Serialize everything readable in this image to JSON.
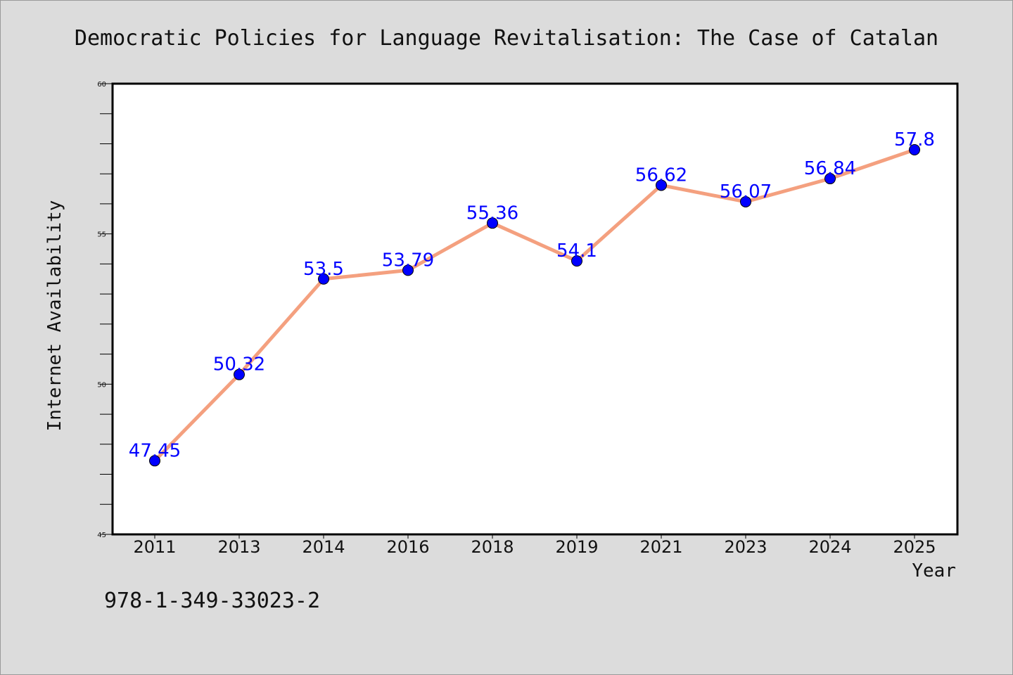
{
  "chart_data": {
    "type": "line",
    "title": "Democratic Policies for Language Revitalisation: The Case of Catalan",
    "xlabel": "Year",
    "ylabel": "Internet Availability",
    "categories": [
      "2011",
      "2013",
      "2014",
      "2016",
      "2018",
      "2019",
      "2021",
      "2023",
      "2024",
      "2025"
    ],
    "series": [
      {
        "values": [
          47.45,
          50.32,
          53.5,
          53.79,
          55.36,
          54.1,
          56.62,
          56.07,
          56.84,
          57.8
        ],
        "data_labels": [
          "47.45",
          "50.32",
          "53.5",
          "53.79",
          "55.36",
          "54.1",
          "56.62",
          "56.07",
          "56.84",
          "57.8"
        ],
        "line_color": "#f4a07f",
        "marker_color": "#0000ff"
      }
    ],
    "ylim": [
      45,
      60
    ],
    "yticks": [
      "45",
      "50",
      "55",
      "60"
    ],
    "grid": false,
    "legend": "none"
  },
  "footer_text": "978-1-349-33023-2",
  "colors": {
    "background": "#dcdcdc",
    "plot_background": "#ffffff",
    "line": "#f4a07f",
    "marker": "#0000ff",
    "data_label": "#0000ff"
  }
}
